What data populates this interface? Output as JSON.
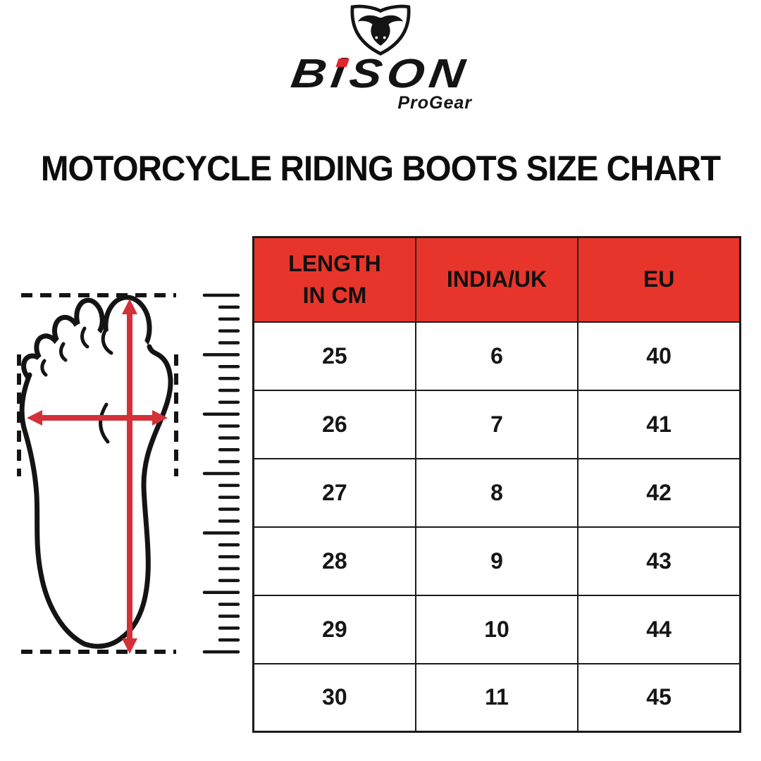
{
  "logo": {
    "shield_icon": "bison-bull-shield-icon",
    "brand_b": "B",
    "brand_i": "i",
    "brand_rest": "SON",
    "tagline": "ProGear"
  },
  "chart_data": {
    "type": "table",
    "title": "MOTORCYCLE RIDING BOOTS SIZE CHART",
    "columns": [
      "LENGTH IN CM",
      "INDIA/UK",
      "EU"
    ],
    "rows": [
      [
        25,
        6,
        40
      ],
      [
        26,
        7,
        41
      ],
      [
        27,
        8,
        42
      ],
      [
        28,
        9,
        43
      ],
      [
        29,
        10,
        44
      ],
      [
        30,
        11,
        45
      ]
    ]
  },
  "size_table": {
    "header_lines": [
      [
        "LENGTH",
        "IN CM"
      ],
      [
        "INDIA/UK"
      ],
      [
        "EU"
      ]
    ]
  },
  "illustration": {
    "icons": [
      "foot-outline-icon",
      "length-arrow-icon",
      "width-arrow-icon",
      "ruler-icon"
    ]
  },
  "colors": {
    "header_red": "#E8352B",
    "arrow_red": "#D3303A",
    "ink": "#141414",
    "logo_accent": "#E0252B"
  }
}
